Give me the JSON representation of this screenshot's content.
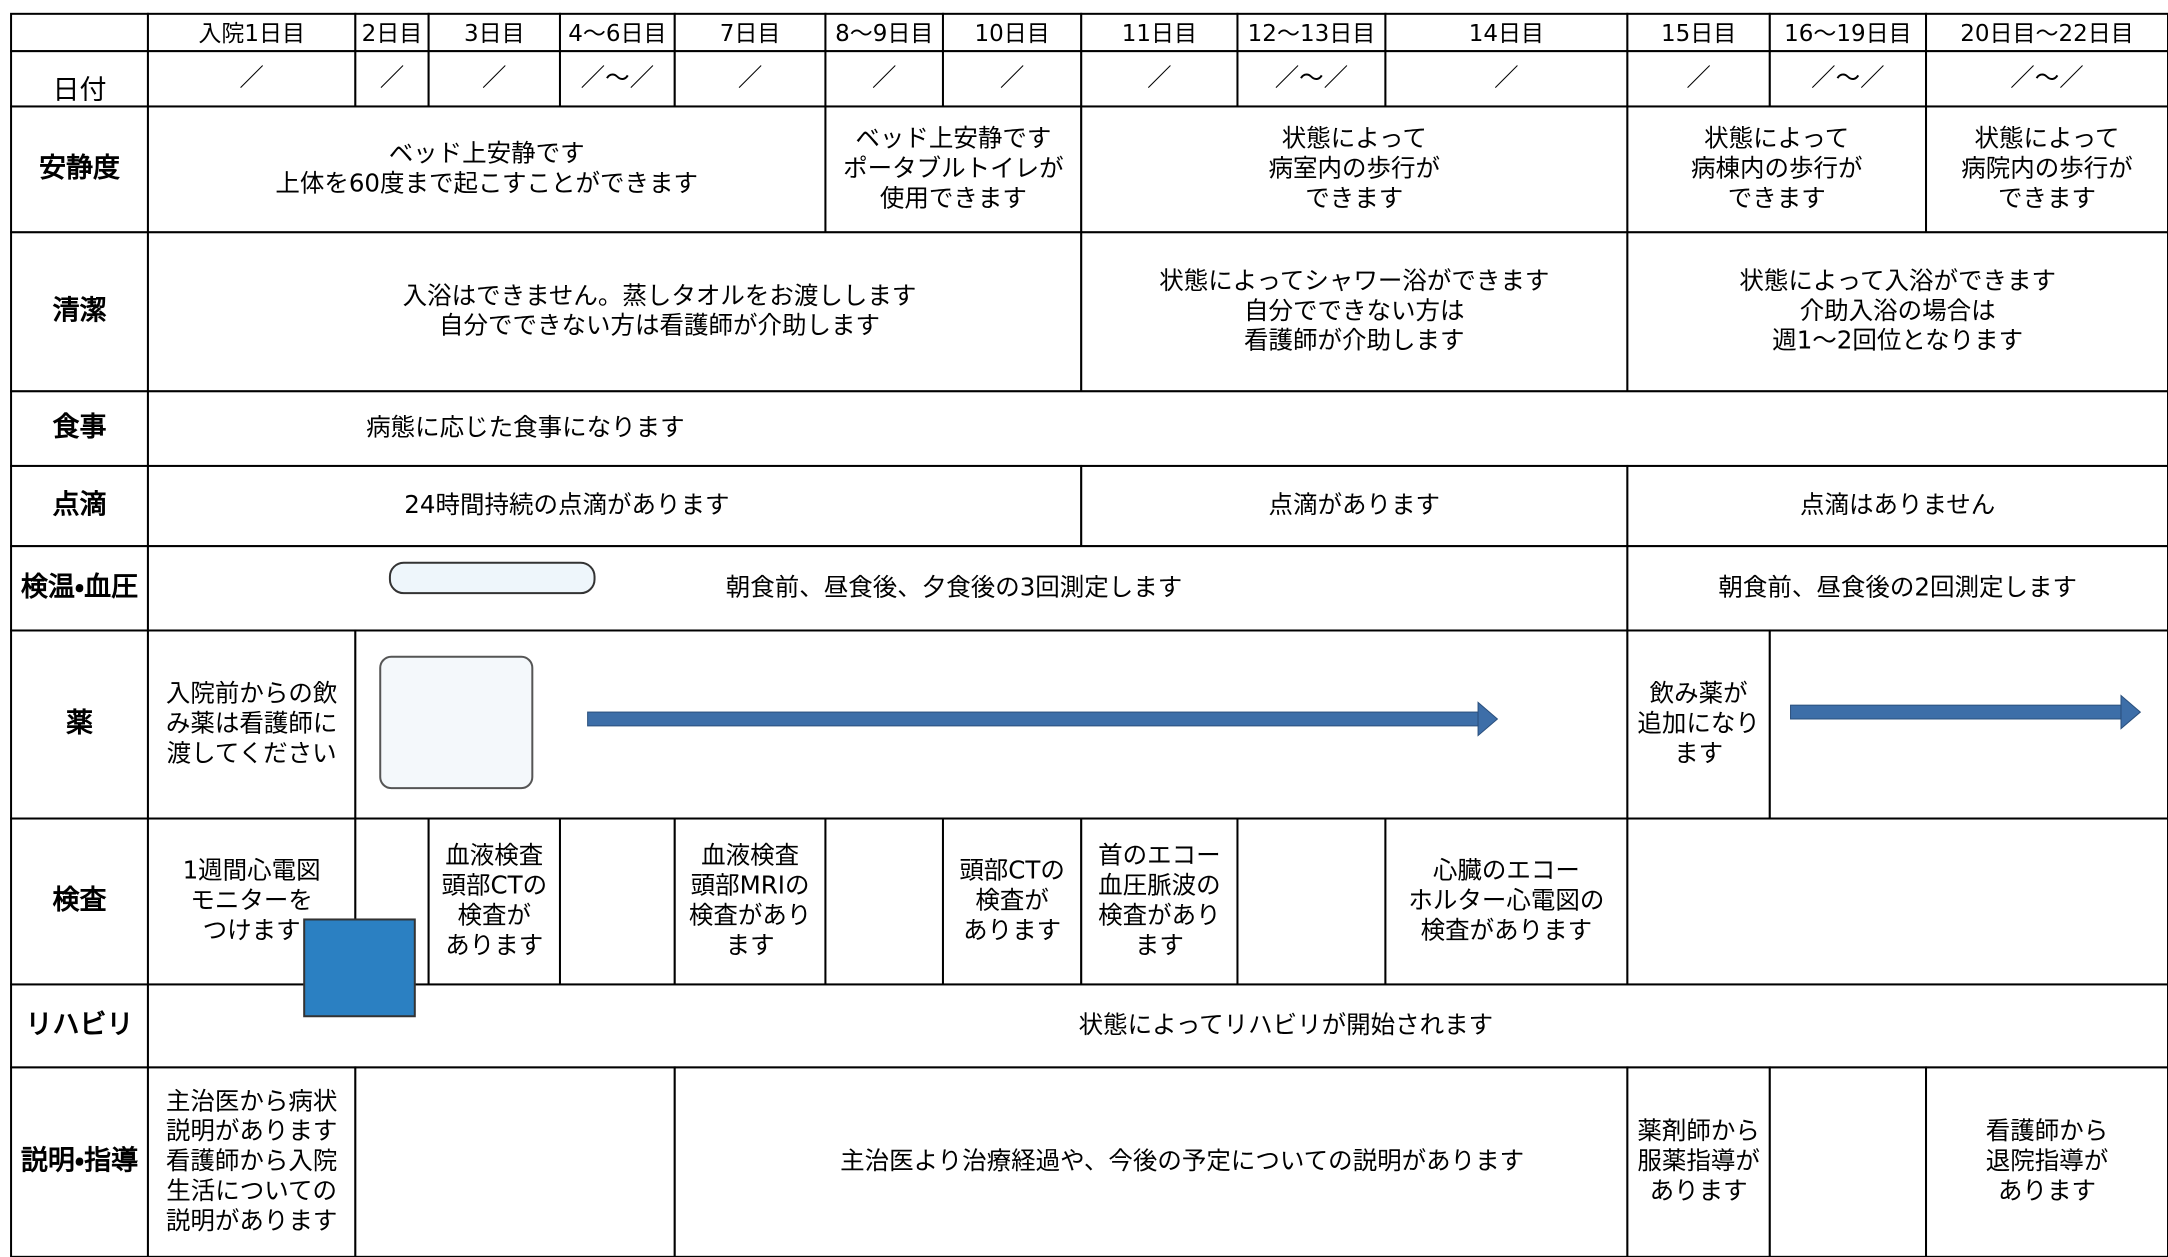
{
  "header": {
    "days": [
      "入院1日目",
      "2日目",
      "3日目",
      "4〜6日目",
      "7日目",
      "8〜9日目",
      "10日目",
      "11日目",
      "12〜13日目",
      "14日目",
      "15日目",
      "16〜19日目",
      "20日目〜22日目"
    ]
  },
  "rows": [
    {
      "label": "日付",
      "cells": [
        [
          "／"
        ],
        [
          "／"
        ],
        [
          "／"
        ],
        [
          "／〜／"
        ],
        [
          "／"
        ],
        [
          "／"
        ],
        [
          "／"
        ],
        [
          "／"
        ],
        [
          "／〜／"
        ],
        [
          "／"
        ],
        [
          "／"
        ],
        [
          "／〜／"
        ],
        [
          "／〜／"
        ]
      ]
    },
    {
      "label": "安静度",
      "cells": [
        [
          "ベッド上安静です",
          "上体を60度まで起こすことができます"
        ],
        [
          "ベッド上安静です",
          "ポータブルトイレが",
          "使用できます"
        ],
        [
          "状態によって",
          "病室内の歩行が",
          "できます"
        ],
        [
          "状態によって",
          "病棟内の歩行が",
          "できます"
        ],
        [
          "状態によって",
          "病院内の歩行が",
          "できます"
        ]
      ]
    },
    {
      "label": "清潔",
      "cells": [
        [
          "入浴はできません。蒸しタオルをお渡しします",
          "自分でできない方は看護師が介助します"
        ],
        [
          "状態によってシャワー浴ができます",
          "自分でできない方は",
          "看護師が介助します"
        ],
        [
          "状態によって入浴ができます",
          "介助入浴の場合は",
          "週1〜2回位となります"
        ]
      ]
    },
    {
      "label": "食事",
      "cells": [
        [
          "病態に応じた食事になります"
        ]
      ]
    },
    {
      "label": "点滴",
      "cells": [
        [
          "24時間持続の点滴があります"
        ],
        [
          "点滴があります"
        ],
        [
          "点滴はありません"
        ]
      ]
    },
    {
      "label": "検温・血圧",
      "cells": [
        [
          "朝食前、昼食後、夕食後の3回測定します"
        ],
        [
          "朝食前、昼食後の2回測定します"
        ]
      ]
    },
    {
      "label": "薬",
      "cells": [
        [
          "入院前からの飲",
          "み薬は看護師に",
          "渡してください"
        ],
        [
          "飲み薬が",
          "追加になり",
          "ます"
        ]
      ]
    },
    {
      "label": "検査",
      "cells": [
        [
          "1週間心電図",
          "モニターを",
          "つけます"
        ],
        [
          "血液検査",
          "頭部CTの",
          "検査が",
          "あります"
        ],
        [
          "血液検査",
          "頭部MRIの",
          "検査があり",
          "ます"
        ],
        [
          "頭部CTの",
          "検査が",
          "あります"
        ],
        [
          "首のエコー",
          "血圧脈波の",
          "検査があり",
          "ます"
        ],
        [
          "心臓のエコー",
          "ホルター心電図の",
          "検査があります"
        ]
      ]
    },
    {
      "label": "リハビリ",
      "cells": [
        [
          "状態によってリハビリが開始されます"
        ]
      ]
    },
    {
      "label": "説明・指導",
      "cells": [
        [
          "主治医から病状",
          "説明があります",
          "看護師から入院",
          "生活についての",
          "説明があります"
        ],
        [
          "主治医より治療経過や、今後の予定についての説明があります"
        ],
        [
          "薬剤師から",
          "服薬指導が",
          "あります"
        ],
        [
          "看護師から",
          "退院指導が",
          "あります"
        ]
      ]
    }
  ]
}
